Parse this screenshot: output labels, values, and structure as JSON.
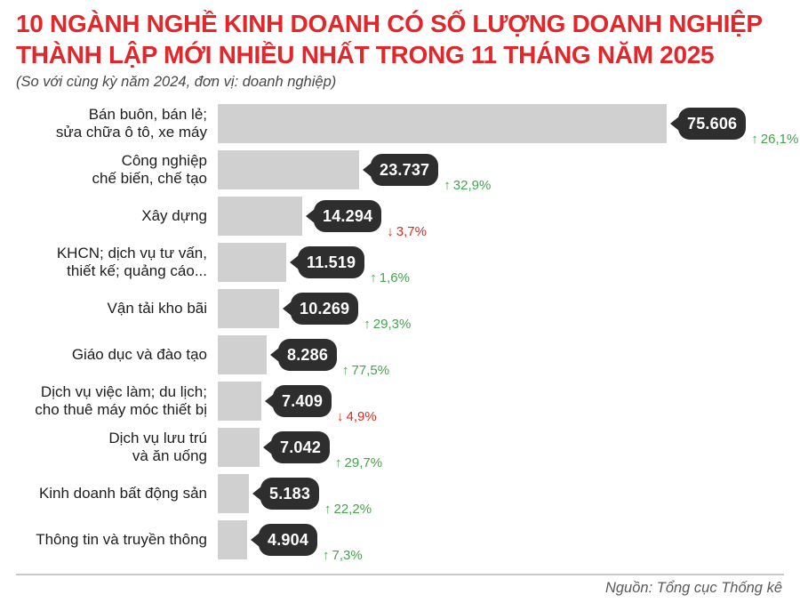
{
  "header": {
    "title_line1": "10 NGÀNH NGHỀ KINH DOANH CÓ SỐ LƯỢNG DOANH NGHIỆP",
    "title_line2": "THÀNH LẬP MỚI NHIỀU NHẤT TRONG 11 THÁNG NĂM 2025",
    "subtitle": "(So với cùng kỳ năm 2024, đơn vị: doanh nghiệp)"
  },
  "chart_data": {
    "type": "bar",
    "orientation": "horizontal",
    "title": "10 ngành nghề kinh doanh có số lượng doanh nghiệp thành lập mới nhiều nhất trong 11 tháng năm 2025",
    "unit": "doanh nghiệp",
    "comparison": "So với cùng kỳ năm 2024",
    "xlim": [
      0,
      80000
    ],
    "grid": false,
    "legend": false,
    "categories": [
      "Bán buôn, bán lẻ;\nsửa chữa ô tô, xe máy",
      "Công nghiệp\nchế biến, chế tạo",
      "Xây dựng",
      "KHCN; dịch vụ tư vấn,\nthiết kế; quảng cáo...",
      "Vận tải kho bãi",
      "Giáo dục và đào tạo",
      "Dịch vụ việc làm; du lịch;\ncho thuê máy móc thiết bị",
      "Dịch vụ lưu trú\nvà ăn uống",
      "Kinh doanh bất động sản",
      "Thông tin và truyền thông"
    ],
    "values": [
      75606,
      23737,
      14294,
      11519,
      10269,
      8286,
      7409,
      7042,
      5183,
      4904
    ],
    "value_labels": [
      "75.606",
      "23.737",
      "14.294",
      "11.519",
      "10.269",
      "8.286",
      "7.409",
      "7.042",
      "5.183",
      "4.904"
    ],
    "change_percent": [
      26.1,
      32.9,
      -3.7,
      1.6,
      29.3,
      77.5,
      -4.9,
      29.7,
      22.2,
      7.3
    ],
    "change_labels": [
      "26,1%",
      "32,9%",
      "3,7%",
      "1,6%",
      "29,3%",
      "77,5%",
      "4,9%",
      "29,7%",
      "22,2%",
      "7,3%"
    ],
    "change_directions": [
      "up",
      "up",
      "down",
      "up",
      "up",
      "up",
      "down",
      "up",
      "up",
      "up"
    ],
    "icons": {
      "up": "↑",
      "down": "↓"
    },
    "colors": {
      "title": "#e2262a",
      "bar": "#d1d0d0",
      "badge": "#2e2e2e",
      "up": "#43a44c",
      "down": "#de2a1e"
    }
  },
  "footer": {
    "source": "Nguồn: Tổng cục Thống kê"
  }
}
